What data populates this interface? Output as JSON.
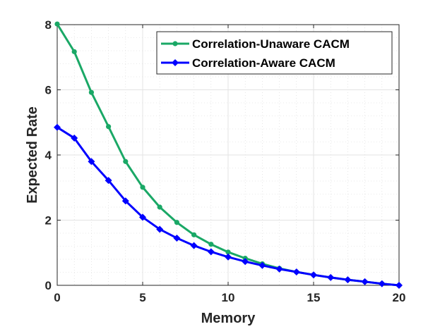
{
  "chart_data": {
    "type": "line",
    "title": "",
    "xlabel": "Memory",
    "ylabel": "Expected Rate",
    "xlim": [
      0,
      20
    ],
    "ylim": [
      0,
      8
    ],
    "xticks": [
      0,
      5,
      10,
      15,
      20
    ],
    "yticks": [
      0,
      2,
      4,
      6,
      8
    ],
    "xtick_labels": [
      "0",
      "5",
      "10",
      "15",
      "20"
    ],
    "ytick_labels": [
      "0",
      "2",
      "4",
      "6",
      "8"
    ],
    "grid": true,
    "minor_grid": true,
    "legend_position": "top-right",
    "x": [
      0,
      1,
      2,
      3,
      4,
      5,
      6,
      7,
      8,
      9,
      10,
      11,
      12,
      13,
      14,
      15,
      16,
      17,
      18,
      19,
      20
    ],
    "series": [
      {
        "name": "Correlation-Unaware CACM",
        "color": "#1aa866",
        "marker": "circle",
        "values": [
          8.02,
          7.17,
          5.92,
          4.87,
          3.8,
          3.01,
          2.4,
          1.93,
          1.55,
          1.26,
          1.02,
          0.83,
          0.66,
          0.52,
          0.41,
          0.32,
          0.24,
          0.17,
          0.11,
          0.05,
          0.0
        ]
      },
      {
        "name": "Correlation-Aware CACM",
        "color": "#0000ff",
        "marker": "diamond",
        "values": [
          4.85,
          4.52,
          3.8,
          3.22,
          2.59,
          2.09,
          1.72,
          1.45,
          1.22,
          1.03,
          0.87,
          0.73,
          0.61,
          0.5,
          0.41,
          0.32,
          0.24,
          0.17,
          0.11,
          0.05,
          0.0
        ]
      }
    ]
  }
}
